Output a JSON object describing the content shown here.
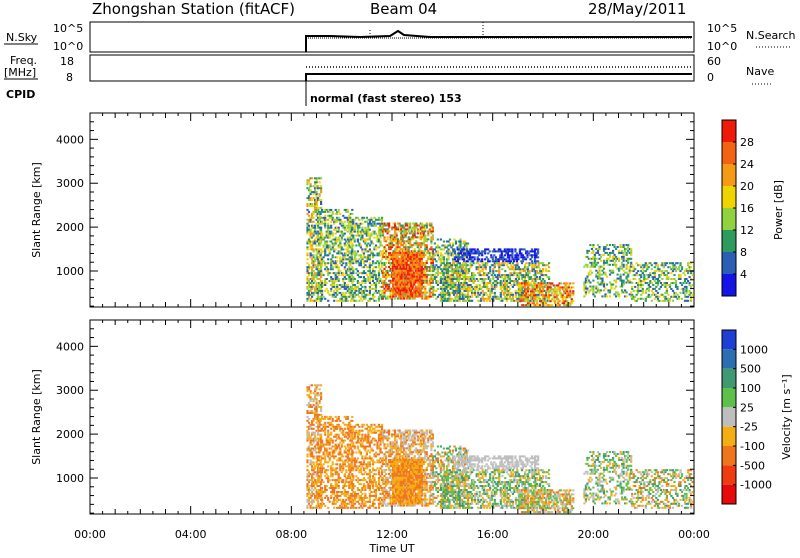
{
  "header": {
    "station": "Zhongshan Station (fitACF)",
    "beam": "Beam 04",
    "date": "28/May/2011"
  },
  "panels": {
    "nsky": {
      "left_label": "N.Sky",
      "left_ticks": [
        "10^5",
        "10^0"
      ],
      "right_ticks": [
        "10^5",
        "10^0"
      ],
      "right_label": "N.Search"
    },
    "freq": {
      "left_label_1": "Freq.",
      "left_label_2": "[MHz]",
      "left_ticks": [
        "18",
        "8"
      ],
      "right_ticks": [
        "60",
        "0"
      ],
      "right_label": "Nave"
    },
    "cpid": {
      "label": "CPID",
      "mode": "normal (fast stereo) 153"
    }
  },
  "chart_data": [
    {
      "type": "heatmap",
      "name": "power",
      "ylabel": "Slant Range [km]",
      "yticks": [
        1000,
        2000,
        3000,
        4000
      ],
      "ylim": [
        180,
        4600
      ],
      "xlim": [
        0,
        24
      ],
      "xticks": [
        "00:00",
        "04:00",
        "08:00",
        "12:00",
        "16:00",
        "20:00",
        "00:00"
      ],
      "colorbar": {
        "label": "Power [dB]",
        "ticks": [
          "4",
          "8",
          "12",
          "16",
          "20",
          "24",
          "28"
        ],
        "colors": [
          "#1414e6",
          "#2a5fb5",
          "#2d9a5e",
          "#8fd13f",
          "#f0d400",
          "#f59a14",
          "#f26414",
          "#ee1a0a"
        ]
      }
    },
    {
      "type": "heatmap",
      "name": "velocity",
      "ylabel": "Slant Range [km]",
      "yticks": [
        1000,
        2000,
        3000,
        4000
      ],
      "ylim": [
        180,
        4600
      ],
      "xlim": [
        0,
        24
      ],
      "xticks": [
        "00:00",
        "04:00",
        "08:00",
        "12:00",
        "16:00",
        "20:00",
        "00:00"
      ],
      "xlabel": "Time UT",
      "colorbar": {
        "label": "Velocity [m s⁻¹]",
        "ticks": [
          "1000",
          "500",
          "100",
          "25",
          "-25",
          "-100",
          "-500",
          "-1000"
        ],
        "colors": [
          "#1e3fd6",
          "#2b6fb2",
          "#3f9a72",
          "#5cc04a",
          "#bebebe",
          "#f5ad14",
          "#f0761e",
          "#ee3c10",
          "#e60a0a"
        ]
      }
    }
  ]
}
